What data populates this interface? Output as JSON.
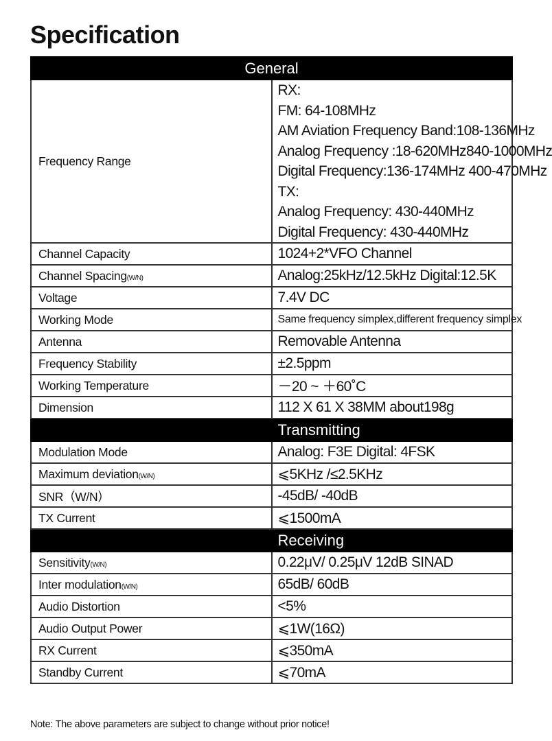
{
  "title": "Specification",
  "sections": {
    "general": "General",
    "transmitting": "Transmitting",
    "receiving": "Receiving"
  },
  "frequency_range": {
    "label": "Frequency Range",
    "lines": [
      "RX:",
      "FM:  64-108MHz",
      "AM Aviation Frequency Band:108-136MHz",
      "Analog Frequency :18-620MHz840-1000MHz",
      "Digital Frequency:136-174MHz  400-470MHz",
      "TX:",
      "Analog Frequency: 430-440MHz",
      "Digital Frequency: 430-440MHz"
    ]
  },
  "general_rows": [
    {
      "label": "Channel Capacity",
      "value": "1024+2*VFO Channel"
    },
    {
      "label": "Channel Spacing",
      "suffix": "(W/N)",
      "value": "Analog:25kHz/12.5kHz  Digital:12.5K"
    },
    {
      "label": "Voltage",
      "value": "7.4V DC"
    },
    {
      "label": "Working Mode",
      "value": "Same frequency simplex,different frequency simplex"
    },
    {
      "label": "Antenna",
      "value": "Removable Antenna"
    },
    {
      "label": "Frequency Stability",
      "value": "±2.5ppm"
    },
    {
      "label": "Working Temperature",
      "value": "－20 ~ ＋60˚C"
    },
    {
      "label": "Dimension",
      "value": "112 X 61 X 38MM   about198g"
    }
  ],
  "transmitting_rows": [
    {
      "label": "Modulation Mode",
      "value": "Analog:  F3E  Digital:  4FSK"
    },
    {
      "label": "Maximum deviation",
      "suffix": "(W/N)",
      "value": "⩽5KHz /≤2.5KHz"
    },
    {
      "label": "SNR（W/N）",
      "value": "-45dB/ -40dB"
    },
    {
      "label": "TX Current",
      "value": "⩽1500mA"
    }
  ],
  "receiving_rows": [
    {
      "label": "Sensitivity",
      "suffix": "(W/N)",
      "value": "0.22μV/ 0.25μV     12dB SINAD"
    },
    {
      "label": "Inter modulation",
      "suffix": "(W/N)",
      "value": "65dB/ 60dB"
    },
    {
      "label": "Audio Distortion",
      "value": "<5%"
    },
    {
      "label": "Audio Output Power",
      "value": "⩽1W(16Ω)"
    },
    {
      "label": "RX Current",
      "value": "⩽350mA"
    },
    {
      "label": "Standby Current",
      "value": "⩽70mA"
    }
  ],
  "note": "Note: The above parameters are subject to change without prior notice!"
}
